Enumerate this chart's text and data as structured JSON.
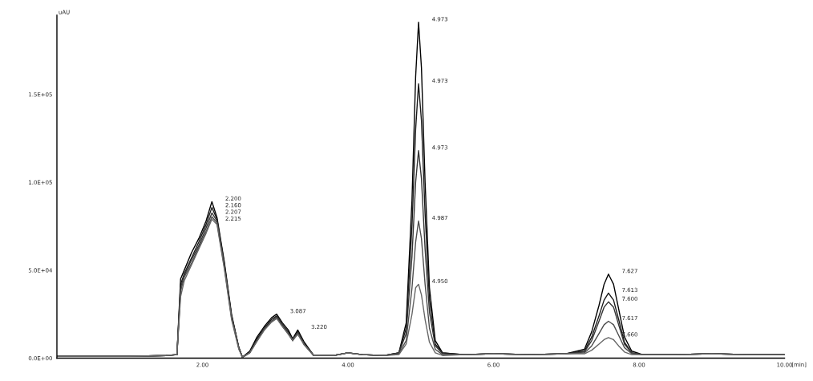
{
  "chart_data": {
    "type": "line",
    "ylabel": "uAU",
    "xlabel": "[min]",
    "x": [
      0,
      0.5,
      1.0,
      1.5,
      1.65,
      1.7,
      1.75,
      1.85,
      1.95,
      2.05,
      2.13,
      2.2,
      2.3,
      2.4,
      2.5,
      2.55,
      2.65,
      2.75,
      2.85,
      2.95,
      3.02,
      3.1,
      3.18,
      3.24,
      3.31,
      3.4,
      3.53,
      3.8,
      4.0,
      4.2,
      4.5,
      4.7,
      4.8,
      4.88,
      4.93,
      4.97,
      5.01,
      5.06,
      5.12,
      5.2,
      5.3,
      5.6,
      6.0,
      6.5,
      7.0,
      7.25,
      7.35,
      7.45,
      7.52,
      7.58,
      7.65,
      7.72,
      7.8,
      7.9,
      8.05,
      8.5,
      9.0,
      9.5,
      10.0
    ],
    "series": [
      {
        "color": "#000000",
        "values": [
          1000,
          1000,
          1000,
          1500,
          2000,
          45000,
          50000,
          60000,
          68000,
          78000,
          89000,
          80000,
          55000,
          25000,
          6000,
          500,
          4000,
          12000,
          18000,
          23000,
          25000,
          20000,
          16000,
          11000,
          16000,
          9000,
          1500,
          1500,
          3000,
          2000,
          1500,
          3000,
          20000,
          90000,
          160000,
          191000,
          165000,
          100000,
          40000,
          10000,
          3000,
          2000,
          2500,
          2000,
          2500,
          5000,
          15000,
          30000,
          42000,
          47800,
          42000,
          28000,
          12000,
          4000,
          2000,
          2000,
          2500,
          2000,
          2000
        ]
      },
      {
        "color": "#1a1a1a",
        "values": [
          1000,
          1000,
          1000,
          1500,
          2000,
          42000,
          48000,
          57000,
          66000,
          76000,
          85700,
          79000,
          54000,
          24000,
          6000,
          500,
          3500,
          11000,
          17000,
          22000,
          24000,
          19000,
          15000,
          10000,
          15000,
          8000,
          1500,
          1500,
          3000,
          2000,
          1500,
          3000,
          17000,
          75000,
          130000,
          156000,
          135000,
          82000,
          33000,
          8000,
          3000,
          2000,
          2500,
          2000,
          2500,
          4000,
          12000,
          24000,
          33000,
          37000,
          33000,
          22000,
          9000,
          3000,
          2000,
          2000,
          2500,
          2000,
          2000
        ]
      },
      {
        "color": "#333333",
        "values": [
          1000,
          1000,
          1000,
          1500,
          2000,
          40000,
          47000,
          56000,
          64000,
          74000,
          82600,
          78000,
          53000,
          24000,
          6000,
          500,
          3000,
          10000,
          17000,
          21000,
          23500,
          19000,
          14000,
          10000,
          14500,
          8000,
          1500,
          1500,
          3000,
          2000,
          1500,
          3000,
          14000,
          58000,
          100000,
          118000,
          102000,
          62000,
          26000,
          7000,
          2500,
          2000,
          2500,
          2000,
          2500,
          3500,
          10000,
          21000,
          29000,
          32000,
          29000,
          19000,
          8000,
          3000,
          2000,
          2000,
          2500,
          2000,
          2000
        ]
      },
      {
        "color": "#4d4d4d",
        "values": [
          1000,
          1000,
          1000,
          1500,
          2000,
          38000,
          46000,
          54000,
          63000,
          72000,
          80400,
          77000,
          52000,
          23000,
          5500,
          500,
          3000,
          10000,
          16000,
          21000,
          23000,
          18000,
          14000,
          10500,
          14000,
          7500,
          1500,
          1500,
          3000,
          2000,
          1500,
          2500,
          10000,
          40000,
          66000,
          78000,
          68000,
          42000,
          17000,
          5000,
          2000,
          2000,
          2500,
          2000,
          2500,
          3000,
          7000,
          14000,
          19000,
          21000,
          19000,
          13000,
          6000,
          2500,
          2000,
          2000,
          2500,
          2000,
          2000
        ]
      },
      {
        "color": "#666666",
        "values": [
          1000,
          1000,
          1000,
          1500,
          2000,
          35000,
          44000,
          53000,
          62000,
          71000,
          79000,
          76000,
          51000,
          22000,
          5000,
          500,
          3000,
          9500,
          16000,
          20500,
          22500,
          18000,
          13500,
          10000,
          13500,
          7500,
          1500,
          1500,
          3000,
          2000,
          1500,
          2000,
          8000,
          25000,
          40000,
          42000,
          36000,
          22000,
          9000,
          3000,
          1500,
          2000,
          2500,
          2000,
          2500,
          2500,
          4500,
          8000,
          10500,
          11700,
          10500,
          7000,
          3500,
          2000,
          2000,
          2000,
          2500,
          2000,
          2000
        ]
      }
    ],
    "annotations": [
      {
        "text": "4.973",
        "x": 4.97,
        "y": 191000
      },
      {
        "text": "4.973",
        "x": 4.97,
        "y": 156000
      },
      {
        "text": "4.973",
        "x": 4.97,
        "y": 118000
      },
      {
        "text": "4.987",
        "x": 4.97,
        "y": 78000
      },
      {
        "text": "4.950",
        "x": 4.97,
        "y": 42000
      },
      {
        "text": "2.200",
        "x": 2.13,
        "y": 89000
      },
      {
        "text": "2.160",
        "x": 2.13,
        "y": 85700
      },
      {
        "text": "2.207",
        "x": 2.13,
        "y": 82600
      },
      {
        "text": "2.215",
        "x": 2.13,
        "y": 80400
      },
      {
        "text": "3.087",
        "x": 3.02,
        "y": 25000
      },
      {
        "text": "3.220",
        "x": 3.31,
        "y": 16000
      },
      {
        "text": "7.627",
        "x": 7.58,
        "y": 47800
      },
      {
        "text": "7.613",
        "x": 7.58,
        "y": 37000
      },
      {
        "text": "7.600",
        "x": 7.58,
        "y": 32000
      },
      {
        "text": "7.617",
        "x": 7.58,
        "y": 21000
      },
      {
        "text": "7.660",
        "x": 7.58,
        "y": 11700
      }
    ],
    "xlim": [
      0,
      10.0
    ],
    "ylim": [
      0,
      195000
    ],
    "xticks": [
      {
        "value": 2,
        "label": "2.00"
      },
      {
        "value": 4,
        "label": "4.00"
      },
      {
        "value": 6,
        "label": "6.00"
      },
      {
        "value": 8,
        "label": "8.00"
      },
      {
        "value": 10,
        "label": "10.00"
      }
    ],
    "yticks": [
      {
        "value": 0,
        "label": "0.0E+00"
      },
      {
        "value": 50000,
        "label": "5.0E+04"
      },
      {
        "value": 100000,
        "label": "1.0E+05"
      },
      {
        "value": 150000,
        "label": "1.5E+05"
      }
    ],
    "grid": false,
    "marker": "none",
    "line_style": "solid"
  }
}
